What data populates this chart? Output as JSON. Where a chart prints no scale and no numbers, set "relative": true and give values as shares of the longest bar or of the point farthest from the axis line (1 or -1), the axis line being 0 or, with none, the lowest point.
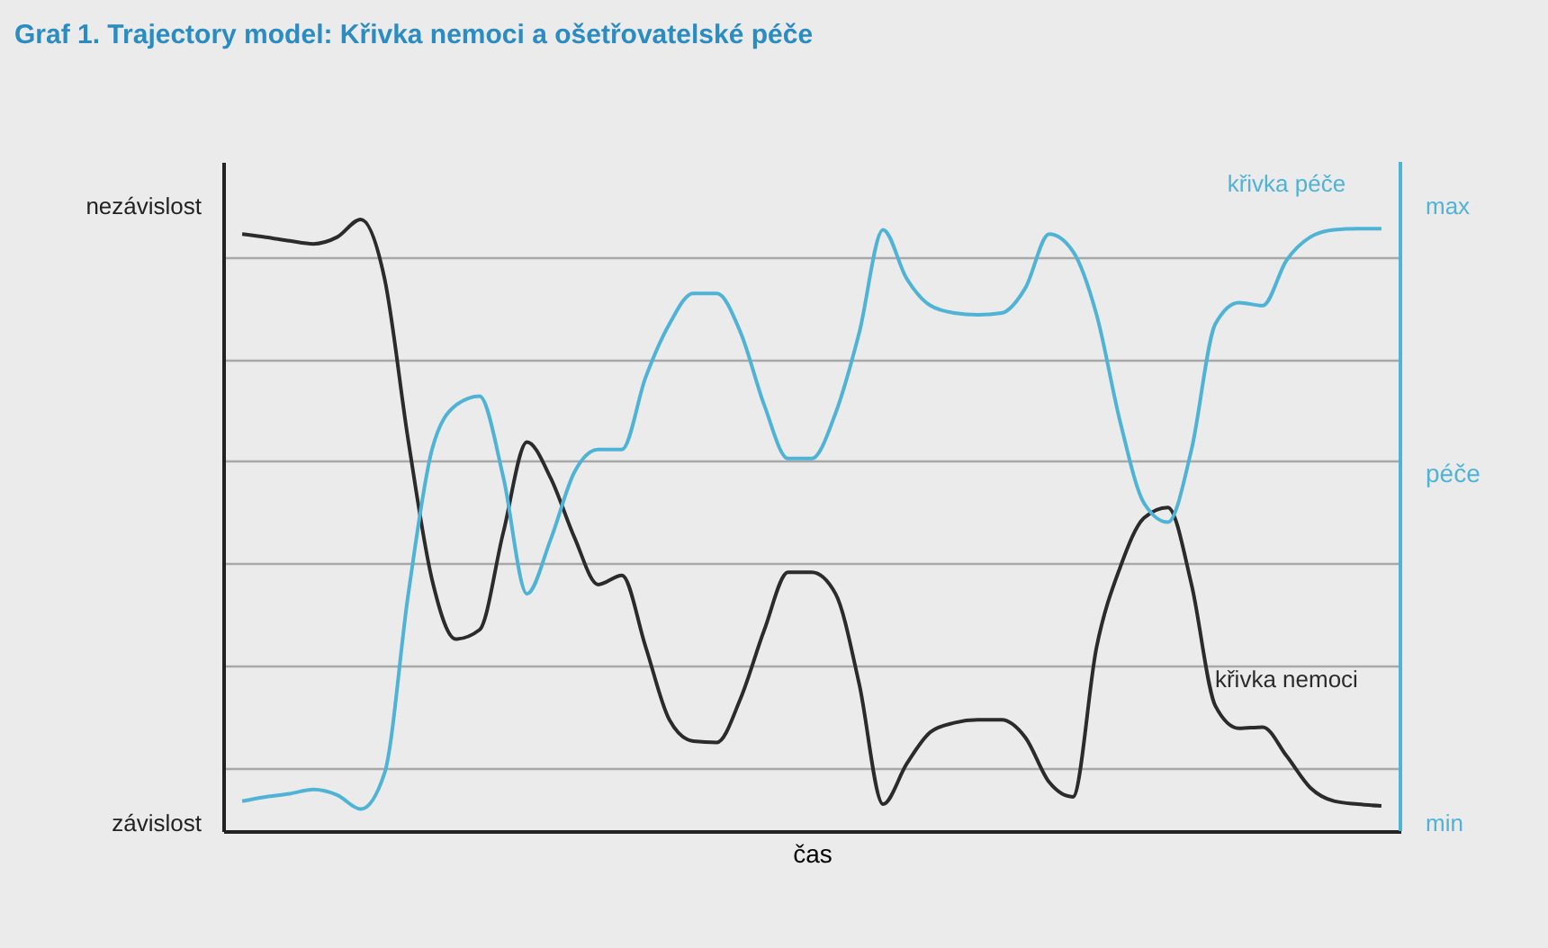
{
  "chart_data": {
    "type": "line",
    "title": "Graf 1. Trajectory model: Křivka nemoci a ošetřovatelské péče",
    "xlabel": "čas",
    "y2label": "péče",
    "relative": true,
    "annotations": [
      "nezávislost",
      "závislost",
      "max",
      "min"
    ],
    "categories": [
      null,
      null,
      null,
      null,
      null,
      null,
      null,
      null,
      null,
      null,
      null,
      null,
      null,
      null,
      null,
      null,
      null,
      null,
      null,
      null,
      null,
      null,
      null,
      null,
      null,
      null,
      null,
      null,
      null,
      null,
      null,
      null,
      null,
      null,
      null,
      null,
      null,
      null,
      null,
      null,
      null,
      null,
      null,
      null,
      null,
      null,
      null,
      null,
      null
    ],
    "series": [
      {
        "name": "křivka nemoci",
        "color": "#2b2b2b",
        "values": [
          0.976,
          0.971,
          0.965,
          0.96,
          0.971,
          1,
          0.903,
          0.638,
          0.411,
          0.314,
          0.329,
          0.488,
          0.636,
          0.577,
          0.48,
          0.403,
          0.418,
          0.301,
          0.182,
          0.147,
          0.145,
          0.217,
          0.329,
          0.423,
          0.423,
          0.388,
          0.24,
          0.044,
          0.11,
          0.162,
          0.177,
          0.182,
          0.182,
          0.153,
          0.08,
          0.056,
          0.301,
          0.432,
          0.512,
          0.529,
          0.403,
          0.205,
          0.168,
          0.17,
          0.123,
          0.071,
          0.049,
          0.044,
          0.041
        ]
      },
      {
        "name": "křivka péče",
        "color": "#4fb3d6",
        "values": [
          0.049,
          0.056,
          0.061,
          0.068,
          0.059,
          0.036,
          0.095,
          0.388,
          0.624,
          0.696,
          0.711,
          0.579,
          0.388,
          0.477,
          0.587,
          0.624,
          0.624,
          0.742,
          0.829,
          0.879,
          0.879,
          0.815,
          0.696,
          0.609,
          0.609,
          0.683,
          0.815,
          0.983,
          0.903,
          0.859,
          0.847,
          0.844,
          0.847,
          0.888,
          0.976,
          0.948,
          0.844,
          0.668,
          0.536,
          0.505,
          0.624,
          0.829,
          0.864,
          0.859,
          0.933,
          0.971,
          0.983,
          0.985,
          0.985
        ]
      }
    ],
    "grid": true,
    "marker": "none",
    "line_style": "solid"
  }
}
